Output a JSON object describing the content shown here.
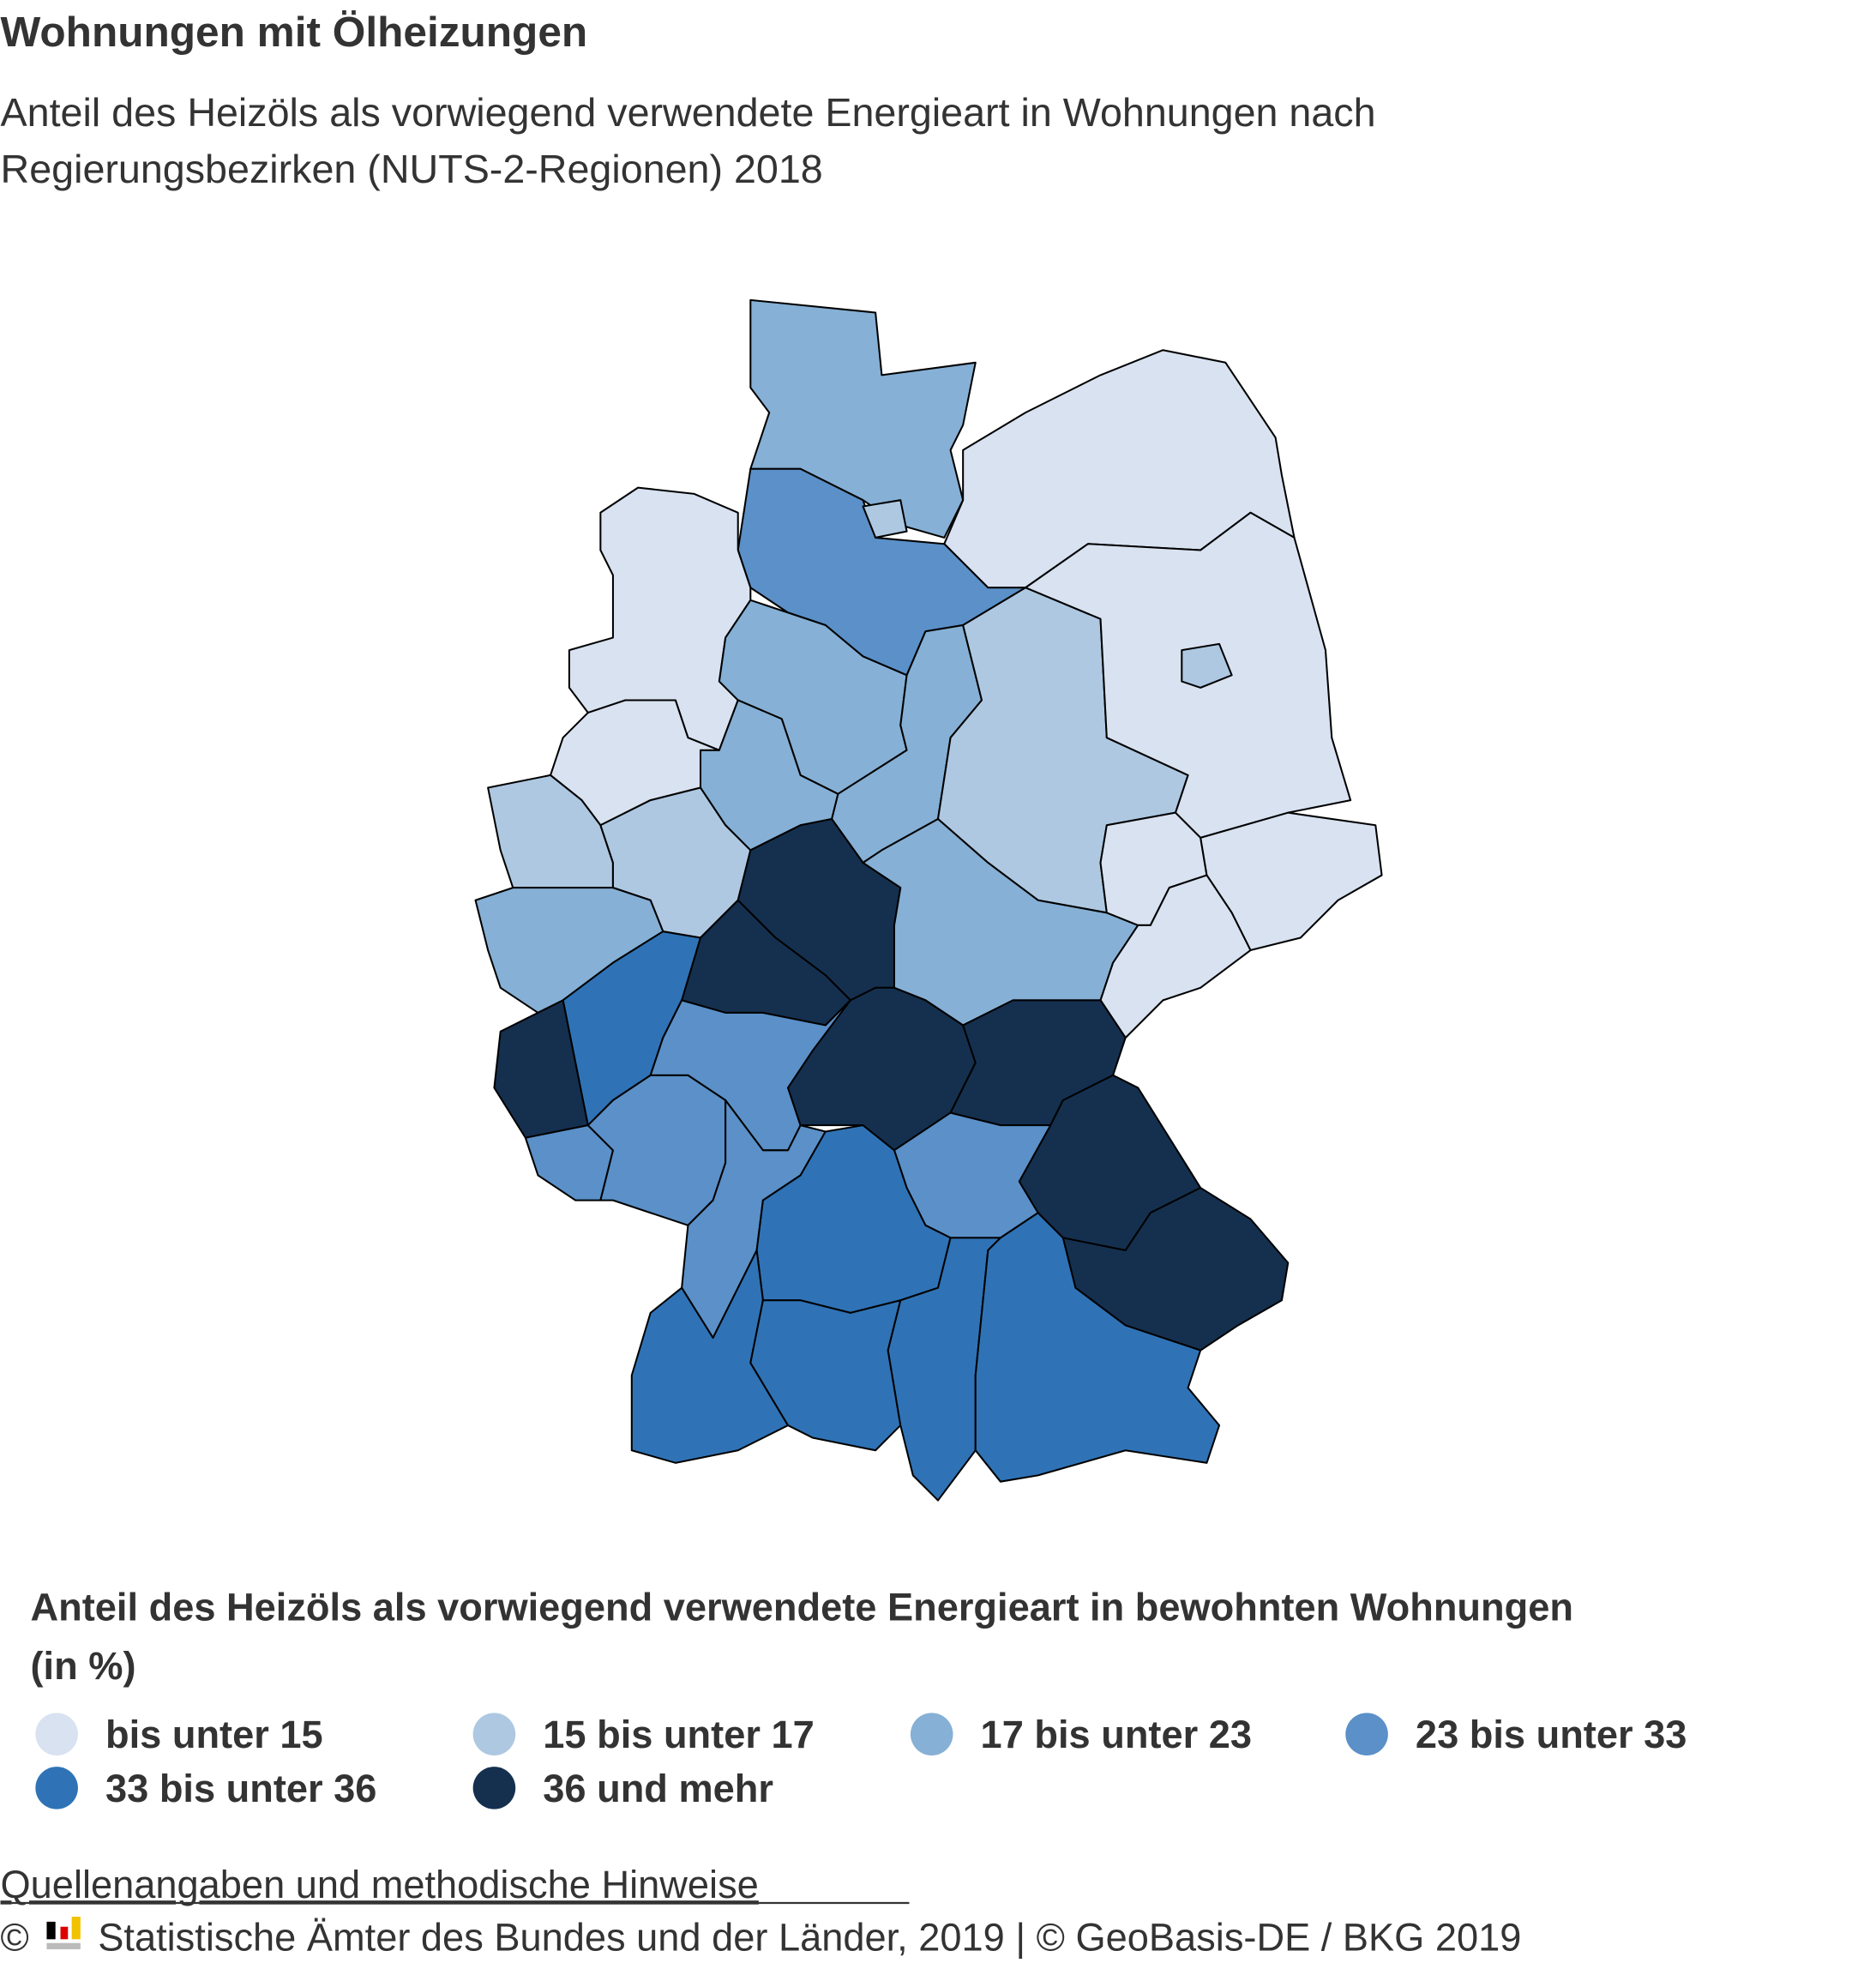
{
  "header": {
    "title": "Wohnungen mit Ölheizungen",
    "subtitle_lines": [
      "Anteil des Heizöls als vorwiegend verwendete Energieart in Wohnungen nach",
      "Regierungsbezirken (NUTS-2-Regionen) 2018"
    ]
  },
  "legend": {
    "title_lines": [
      "Anteil des Heizöls als vorwiegend verwendete Energieart in bewohnten Wohnungen",
      "(in %)"
    ],
    "classes": [
      {
        "label": "bis unter 15",
        "color": "#d8e2f1"
      },
      {
        "label": "15 bis unter 17",
        "color": "#aec8e2"
      },
      {
        "label": "17 bis unter 23",
        "color": "#86b0d5"
      },
      {
        "label": "23 bis unter 33",
        "color": "#5b90c8"
      },
      {
        "label": "33 bis unter 36",
        "color": "#2f73b6"
      },
      {
        "label": "36 und mehr",
        "color": "#15304f"
      }
    ]
  },
  "footer": {
    "source_link": "Quellenangaben und methodische Hinweise",
    "copyright_symbol": "©",
    "copyright": "Statistische Ämter des Bundes und der Länder, 2019 | © GeoBasis-DE / BKG 2019"
  }
}
